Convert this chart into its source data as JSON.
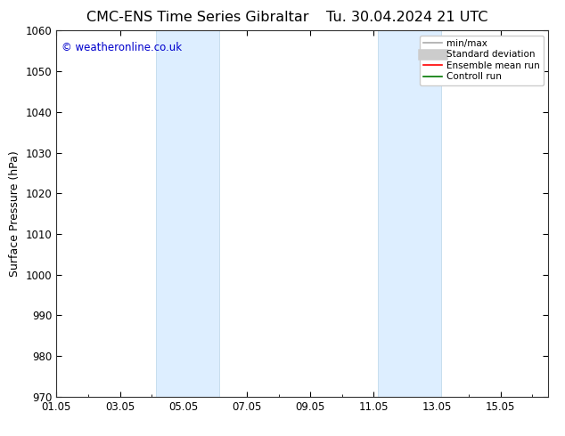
{
  "title_left": "CMC-ENS Time Series Gibraltar",
  "title_right": "Tu. 30.04.2024 21 UTC",
  "ylabel": "Surface Pressure (hPa)",
  "ylim": [
    970,
    1060
  ],
  "yticks": [
    970,
    980,
    990,
    1000,
    1010,
    1020,
    1030,
    1040,
    1050,
    1060
  ],
  "xlim_start": 0.0,
  "xlim_end": 15.5,
  "xtick_positions": [
    0,
    2,
    4,
    6,
    8,
    10,
    12,
    14
  ],
  "xtick_labels": [
    "01.05",
    "03.05",
    "05.05",
    "07.05",
    "09.05",
    "11.05",
    "13.05",
    "15.05"
  ],
  "shaded_bands": [
    {
      "x_start": 3.125,
      "x_end": 5.125
    },
    {
      "x_start": 10.125,
      "x_end": 12.125
    }
  ],
  "band_color": "#ddeeff",
  "band_edge_color": "#b8d4e8",
  "copyright_text": "© weatheronline.co.uk",
  "copyright_color": "#0000cc",
  "bg_color": "#ffffff",
  "legend_items": [
    {
      "label": "min/max",
      "color": "#aaaaaa",
      "lw": 1.2
    },
    {
      "label": "Standard deviation",
      "color": "#cccccc",
      "lw": 5
    },
    {
      "label": "Ensemble mean run",
      "color": "#ff0000",
      "lw": 1.2
    },
    {
      "label": "Controll run",
      "color": "#007700",
      "lw": 1.2
    }
  ],
  "title_fontsize": 11.5,
  "tick_fontsize": 8.5,
  "ylabel_fontsize": 9,
  "legend_fontsize": 7.5,
  "copyright_fontsize": 8.5
}
